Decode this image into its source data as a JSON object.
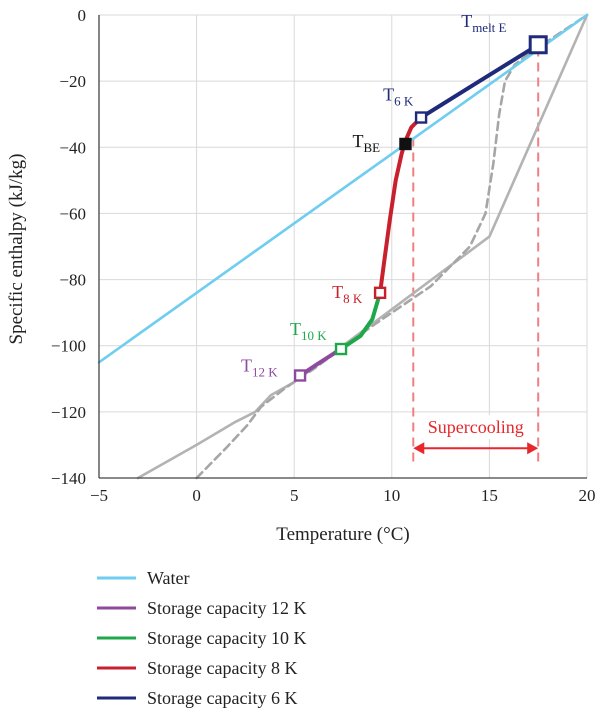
{
  "chart_data": {
    "type": "line",
    "xlabel": "Temperature (°C)",
    "ylabel": "Specific enthalpy (kJ/kg)",
    "xlim": [
      -5,
      20
    ],
    "ylim": [
      -140,
      0
    ],
    "xticks": [
      "−5",
      "0",
      "5",
      "10",
      "15",
      "20"
    ],
    "yticks": [
      "0",
      "−20",
      "−40",
      "−60",
      "−80",
      "−100",
      "−120",
      "−140"
    ],
    "grid": true,
    "series": [
      {
        "name": "Water",
        "color": "#6fcdf0",
        "x": [
          -5,
          20
        ],
        "y": [
          -105,
          0
        ]
      },
      {
        "name": "Storage capacity 12 K",
        "color": "#8e4a9e",
        "x": [
          5.3,
          6.2,
          7.4
        ],
        "y": [
          -109,
          -105.5,
          -101
        ]
      },
      {
        "name": "Storage capacity 10 K",
        "color": "#1fa84a",
        "x": [
          7.4,
          8.4,
          9.0,
          9.4
        ],
        "y": [
          -101,
          -97,
          -92,
          -84
        ]
      },
      {
        "name": "Storage capacity 8 K",
        "color": "#c8202c",
        "x": [
          9.4,
          9.6,
          9.9,
          10.2,
          10.5,
          10.7,
          11.0,
          11.5
        ],
        "y": [
          -84,
          -75,
          -62,
          -50,
          -42,
          -38,
          -34,
          -31
        ]
      },
      {
        "name": "Storage capacity 6 K",
        "color": "#1f2a7a",
        "x": [
          11.5,
          14.5,
          17.5
        ],
        "y": [
          -31,
          -20,
          -9
        ]
      }
    ],
    "reference_lines": [
      {
        "style": "solid",
        "color": "#b3b3b3",
        "x": [
          -3,
          0,
          2,
          3,
          3.8,
          5,
          10,
          15,
          20
        ],
        "y": [
          -140,
          -130,
          -123,
          -120,
          -115,
          -111,
          -89,
          -67,
          0
        ]
      },
      {
        "style": "dashed",
        "color": "#a6a6a6",
        "x": [
          0,
          1.5,
          2.6,
          3.3,
          4.5,
          6,
          9,
          12,
          14,
          14.8,
          15.2,
          15.5,
          15.8,
          16.3,
          17.2,
          20
        ],
        "y": [
          -140,
          -131,
          -124,
          -118.5,
          -113,
          -107,
          -94,
          -82,
          -70,
          -60,
          -45,
          -30,
          -20,
          -15,
          -11,
          0
        ]
      }
    ],
    "markers": [
      {
        "label": "T",
        "sub": "melt E",
        "x": 17.5,
        "y": -9,
        "color": "#1f2a7a",
        "shape": "open-square-large"
      },
      {
        "label": "T",
        "sub": "6 K",
        "x": 11.5,
        "y": -31,
        "color": "#1f2a7a",
        "shape": "open-square"
      },
      {
        "label": "T",
        "sub": "BE",
        "x": 10.7,
        "y": -39,
        "color": "#111111",
        "shape": "filled-square"
      },
      {
        "label": "T",
        "sub": "8 K",
        "x": 9.4,
        "y": -84,
        "color": "#c8202c",
        "shape": "open-square"
      },
      {
        "label": "T",
        "sub": "10 K",
        "x": 7.4,
        "y": -101,
        "color": "#1fa84a",
        "shape": "open-square"
      },
      {
        "label": "T",
        "sub": "12 K",
        "x": 5.3,
        "y": -109,
        "color": "#8e4a9e",
        "shape": "open-square"
      }
    ],
    "vertical_guides": [
      {
        "x": 11.1,
        "y_from": -135,
        "y_to": -37,
        "color": "#f08080"
      },
      {
        "x": 17.5,
        "y_from": -135,
        "y_to": -9,
        "color": "#f08080"
      }
    ],
    "supercooling": {
      "label": "Supercooling",
      "x_from": 11.1,
      "x_to": 17.5,
      "y": -131,
      "color": "#e8262b"
    },
    "legend": {
      "placement": "bottom"
    }
  }
}
